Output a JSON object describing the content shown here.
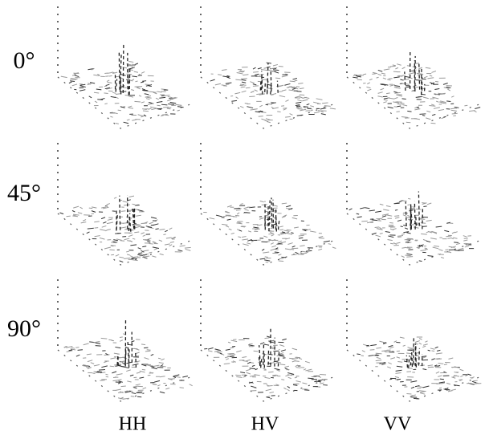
{
  "row_labels": [
    "0°",
    "45°",
    "90°"
  ],
  "column_labels": [
    "HH",
    "HV",
    "VV"
  ]
}
